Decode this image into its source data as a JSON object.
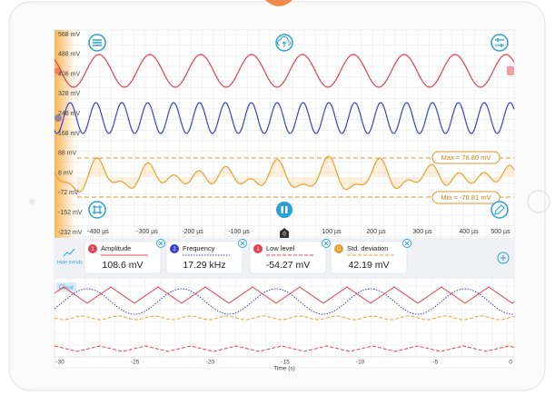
{
  "scope": {
    "y_labels": [
      "568 mV",
      "488 mV",
      "408 mV",
      "328 mV",
      "248 mV",
      "168 mV",
      "88 mV",
      "8 mV",
      "-72 mV",
      "-152 mV",
      "-232 mV"
    ],
    "x_labels": [
      "-400 µs",
      "-300 µs",
      "-200 µs",
      "-100 µs",
      "0",
      "100 µs",
      "200 µs",
      "300 µs",
      "400 µs",
      "500 µs"
    ],
    "max_label": "Max = 78.80 mV",
    "min_label": "Min = -78.81 mV"
  },
  "measurements": [
    {
      "badge": "1",
      "name": "Amplitude",
      "value": "108.6 mV"
    },
    {
      "badge": "2",
      "name": "Frequency",
      "value": "17.29 kHz"
    },
    {
      "badge": "1",
      "name": "Low level",
      "value": "-54.27 mV"
    },
    {
      "badge": "U",
      "name": "Std. deviation",
      "value": "42.19 mV"
    }
  ],
  "trends": {
    "toggle": "Hide trends",
    "clear": "Clear",
    "x_labels": [
      "-30",
      "-25",
      "-20",
      "-15",
      "-10",
      "-5",
      "0"
    ],
    "x_axis_label": "Time (s)"
  }
}
